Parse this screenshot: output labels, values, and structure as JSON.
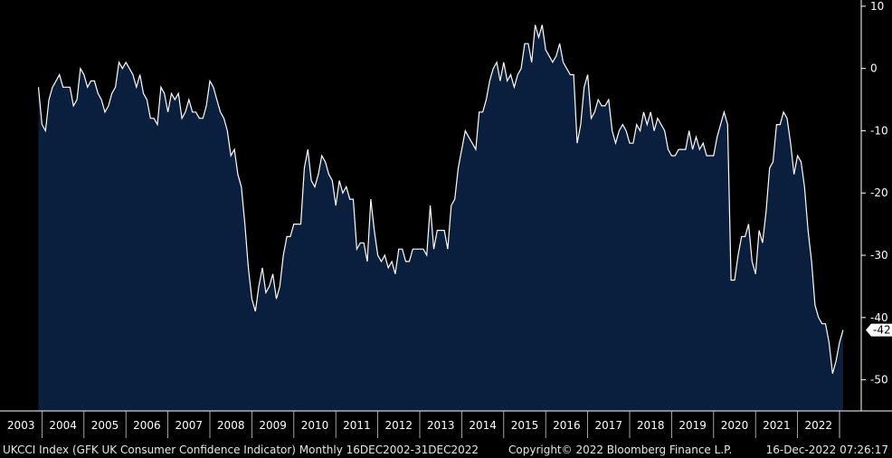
{
  "chart_data": {
    "type": "area",
    "title": "",
    "xlabel": "",
    "ylabel": "",
    "frequency": "Monthly",
    "date_range": "16DEC2002-31DEC2022",
    "ylim": [
      -55,
      11
    ],
    "y_ticks": [
      10,
      0,
      -10,
      -20,
      -30,
      -40,
      -50
    ],
    "x_ticks": [
      "2003",
      "2004",
      "2005",
      "2006",
      "2007",
      "2008",
      "2009",
      "2010",
      "2011",
      "2012",
      "2013",
      "2014",
      "2015",
      "2016",
      "2017",
      "2018",
      "2019",
      "2020",
      "2021",
      "2022"
    ],
    "last_value": -42,
    "last_value_label": "-42",
    "grid": false,
    "fill_color": "#0a1f3d",
    "line_color": "#ffffff",
    "series": [
      {
        "name": "UKCCI Index",
        "start": "2002-12",
        "values": [
          -3,
          -9,
          -10,
          -5,
          -3,
          -2,
          -1,
          -3,
          -3,
          -3,
          -6,
          -5,
          0,
          -1,
          -3,
          -2,
          -2,
          -4,
          -5,
          -7,
          -6,
          -4,
          -3,
          1,
          0,
          1,
          0,
          -1,
          -3,
          -1,
          -4,
          -5,
          -8,
          -8,
          -9,
          -3,
          -4,
          -7,
          -4,
          -5,
          -4,
          -8,
          -7,
          -5,
          -7,
          -7,
          -8,
          -8,
          -6,
          -2,
          -3,
          -5,
          -7,
          -8,
          -10,
          -14,
          -13,
          -17,
          -19,
          -25,
          -32,
          -37,
          -39,
          -35,
          -32,
          -36,
          -35,
          -33,
          -37,
          -35,
          -30,
          -27,
          -27,
          -25,
          -25,
          -25,
          -16,
          -13,
          -18,
          -19,
          -17,
          -14,
          -15,
          -17,
          -18,
          -22,
          -18,
          -20,
          -19,
          -21,
          -21,
          -29,
          -28,
          -28,
          -31,
          -21,
          -26,
          -30,
          -31,
          -30,
          -32,
          -31,
          -33,
          -29,
          -29,
          -31,
          -31,
          -29,
          -29,
          -29,
          -29,
          -30,
          -22,
          -29,
          -26,
          -26,
          -26,
          -29,
          -22,
          -21,
          -16,
          -13,
          -10,
          -11,
          -12,
          -13,
          -7,
          -7,
          -5,
          -2,
          0,
          1,
          -2,
          1,
          -2,
          -1,
          -3,
          -1,
          0,
          4,
          4,
          1,
          7,
          5,
          7,
          3,
          2,
          1,
          2,
          4,
          1,
          0,
          -1,
          -1,
          -12,
          -9,
          -3,
          -1,
          -8,
          -7,
          -5,
          -6,
          -6,
          -5,
          -10,
          -12,
          -10,
          -9,
          -10,
          -12,
          -12,
          -9,
          -10,
          -7,
          -9,
          -7,
          -10,
          -8,
          -9,
          -10,
          -13,
          -14,
          -14,
          -13,
          -13,
          -13,
          -10,
          -13,
          -11,
          -13,
          -12,
          -14,
          -14,
          -14,
          -11,
          -9,
          -7,
          -9,
          -34,
          -34,
          -30,
          -27,
          -27,
          -25,
          -31,
          -33,
          -26,
          -28,
          -23,
          -16,
          -15,
          -9,
          -9,
          -7,
          -8,
          -12,
          -17,
          -14,
          -15,
          -19,
          -26,
          -31,
          -38,
          -40,
          -41,
          -41,
          -44,
          -49,
          -47,
          -44,
          -42
        ]
      }
    ]
  },
  "footer": {
    "series_label": "UKCCI Index (GFK UK Consumer Confidence Indicator)  Monthly 16DEC2002-31DEC2022",
    "copyright": "Copyright© 2022 Bloomberg Finance L.P.",
    "timestamp": "16-Dec-2022 07:26:17"
  }
}
